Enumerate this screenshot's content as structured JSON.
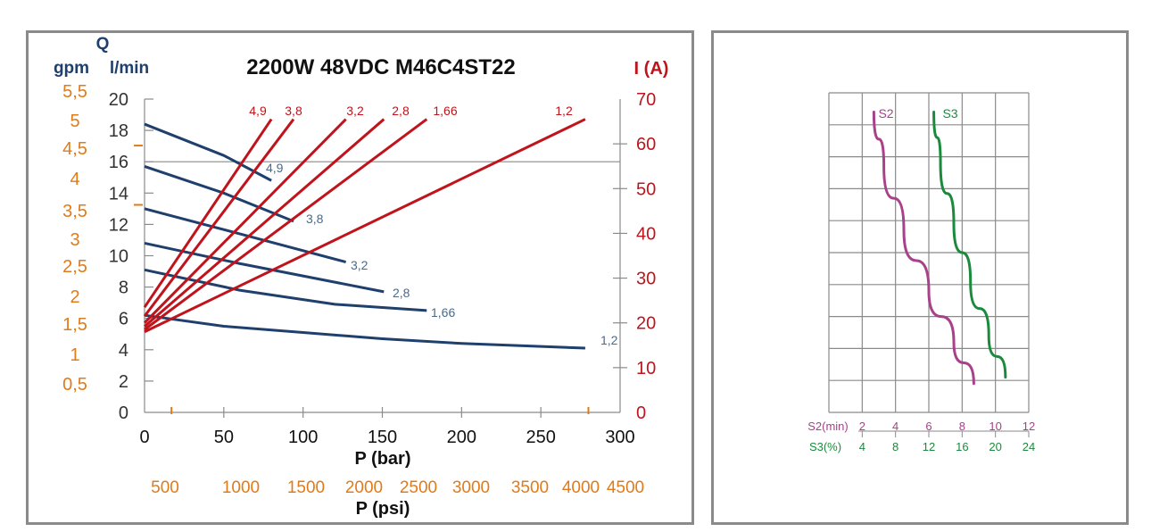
{
  "colors": {
    "blue": "#1f3f6d",
    "red": "#c0141c",
    "orange": "#e07b1a",
    "purple": "#a8408a",
    "green": "#1b8a3c",
    "grid": "#8a8a8a"
  },
  "chart_data": [
    {
      "type": "line",
      "title": "2200W 48VDC M46C4ST22",
      "q_symbol": "Q",
      "gpm_label": "gpm",
      "lmin_label": "l/min",
      "current_label": "I (A)",
      "xlabel": "P (bar)",
      "xlabel_psi": "P (psi)",
      "xlim": [
        0,
        300
      ],
      "ylim": [
        0,
        20
      ],
      "y2lim": [
        0,
        70
      ],
      "x_ticks": [
        "0",
        "50",
        "100",
        "150",
        "200",
        "250",
        "300"
      ],
      "y_ticks": [
        "0",
        "2",
        "4",
        "6",
        "8",
        "10",
        "12",
        "14",
        "16",
        "18",
        "20"
      ],
      "y2_ticks": [
        "0",
        "10",
        "20",
        "30",
        "40",
        "50",
        "60",
        "70"
      ],
      "gpm_ticks": [
        "0,5",
        "1",
        "1,5",
        "2",
        "2,5",
        "3",
        "3,5",
        "4",
        "4,5",
        "5",
        "5,5"
      ],
      "psi_ticks": [
        "500",
        "1000",
        "1500",
        "2000",
        "2500",
        "3000",
        "3500",
        "4000",
        "4500"
      ],
      "flow_series": [
        {
          "name": "4,9",
          "x": [
            0,
            50,
            80
          ],
          "y": [
            18.4,
            16.4,
            14.8
          ]
        },
        {
          "name": "3,8",
          "x": [
            0,
            50,
            94
          ],
          "y": [
            15.7,
            14.0,
            12.2
          ]
        },
        {
          "name": "3,2",
          "x": [
            0,
            60,
            127
          ],
          "y": [
            13.0,
            11.4,
            9.6
          ]
        },
        {
          "name": "2,8",
          "x": [
            0,
            60,
            151
          ],
          "y": [
            10.8,
            9.5,
            7.7
          ]
        },
        {
          "name": "1,66",
          "x": [
            0,
            60,
            120,
            178
          ],
          "y": [
            9.1,
            7.8,
            6.9,
            6.5
          ]
        },
        {
          "name": "1,2",
          "x": [
            0,
            50,
            100,
            150,
            200,
            278
          ],
          "y": [
            6.2,
            5.5,
            5.1,
            4.7,
            4.4,
            4.1
          ]
        }
      ],
      "current_series": [
        {
          "name": "4,9",
          "x": [
            0,
            80
          ],
          "y": [
            23.5,
            65.5
          ]
        },
        {
          "name": "3,8",
          "x": [
            0,
            94
          ],
          "y": [
            21.5,
            65.5
          ]
        },
        {
          "name": "3,2",
          "x": [
            0,
            127
          ],
          "y": [
            20.0,
            65.5
          ]
        },
        {
          "name": "2,8",
          "x": [
            0,
            151
          ],
          "y": [
            19.2,
            65.5
          ]
        },
        {
          "name": "1,66",
          "x": [
            0,
            178
          ],
          "y": [
            18.5,
            65.5
          ]
        },
        {
          "name": "1,2",
          "x": [
            0,
            278
          ],
          "y": [
            18.0,
            65.5
          ]
        }
      ]
    },
    {
      "type": "line",
      "x_label_s2": "S2(min)",
      "x_label_s3": "S3(%)",
      "s2_ticks": [
        "2",
        "4",
        "6",
        "8",
        "10",
        "12"
      ],
      "s3_ticks": [
        "4",
        "8",
        "12",
        "16",
        "20",
        "24"
      ],
      "series": [
        {
          "name": "S2",
          "x_s2": [
            2.7,
            3.3,
            4.5,
            6.0,
            7.5,
            8.7
          ],
          "y_rel": [
            0.94,
            0.77,
            0.57,
            0.38,
            0.22,
            0.09
          ]
        },
        {
          "name": "S3",
          "x_s2": [
            6.3,
            6.7,
            7.5,
            8.5,
            9.6,
            10.6
          ],
          "y_rel": [
            0.94,
            0.78,
            0.59,
            0.41,
            0.24,
            0.11
          ]
        }
      ]
    }
  ]
}
